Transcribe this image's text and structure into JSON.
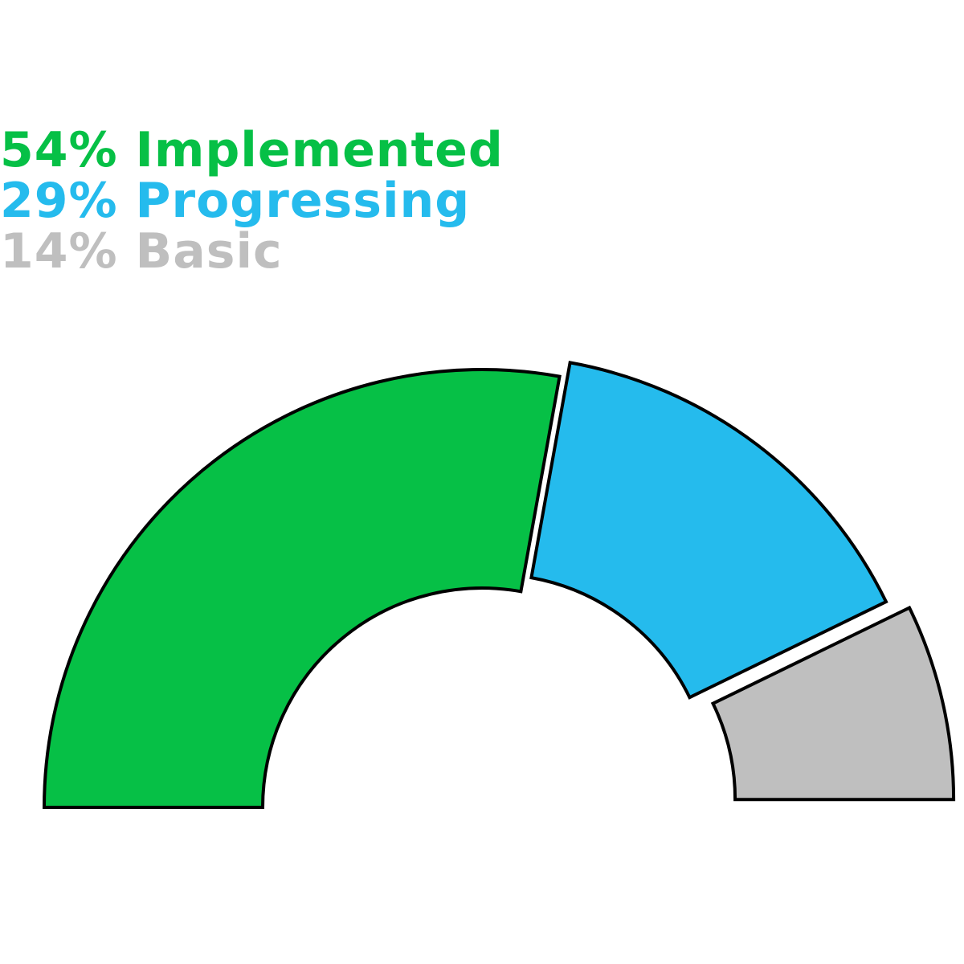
{
  "chart_data": {
    "type": "pie",
    "variant": "semicircle-donut",
    "title": "",
    "series": [
      {
        "name": "Implemented",
        "value": 54,
        "label_percent": "54%",
        "label_text": "Implemented",
        "color": "#06c046"
      },
      {
        "name": "Progressing",
        "value": 29,
        "label_percent": "29%",
        "label_text": "Progressing",
        "color": "#25bbed"
      },
      {
        "name": "Basic",
        "value": 14,
        "label_percent": "14%",
        "label_text": "Basic",
        "color": "#bfbfbf"
      }
    ],
    "stroke_color": "#000000",
    "legend_position": "top-left",
    "exploded_slices": true
  }
}
